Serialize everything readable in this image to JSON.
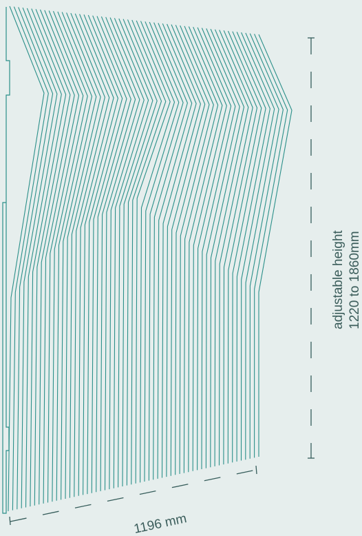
{
  "colors": {
    "background": "#e6eeed",
    "line": "#2a8f89",
    "dim": "#355c5a",
    "text": "#3b5d5b"
  },
  "dimensions": {
    "height_line1": "adjustable height",
    "height_line2": "1220 to 1860mm",
    "width_label": "1196 mm"
  },
  "object": {
    "strand_count": 58
  }
}
